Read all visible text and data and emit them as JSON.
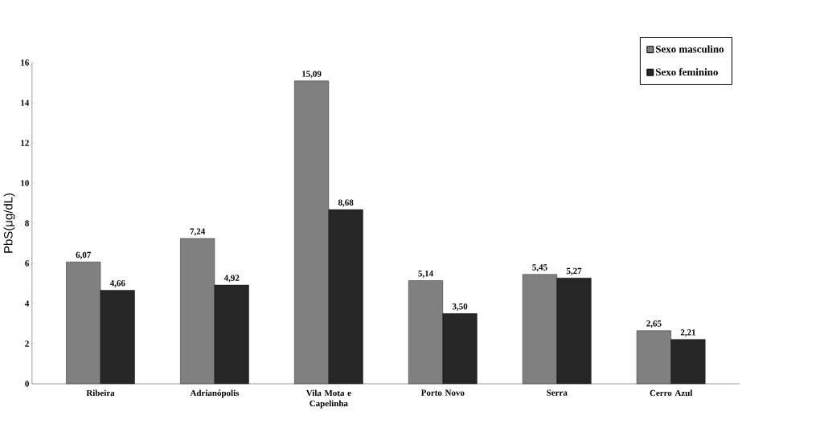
{
  "chart_data": {
    "type": "bar",
    "ylabel": "PbS(μg/dL)",
    "categories": [
      "Ribeira",
      "Adrianópolis",
      "Vila Mota e Capelinha",
      "Porto Novo",
      "Serra",
      "Cerro Azul"
    ],
    "series": [
      {
        "name": "Sexo masculino",
        "color": "#808080",
        "values": [
          6.07,
          7.24,
          15.09,
          5.14,
          5.45,
          2.65
        ],
        "value_labels": [
          "6,07",
          "7,24",
          "15,09",
          "5,14",
          "5,45",
          "2,65"
        ]
      },
      {
        "name": "Sexo feminino",
        "color": "#262626",
        "values": [
          4.66,
          4.92,
          8.68,
          3.5,
          5.27,
          2.21
        ],
        "value_labels": [
          "4,66",
          "4,92",
          "8,68",
          "3,50",
          "5,27",
          "2,21"
        ]
      }
    ],
    "ylim": [
      0,
      16
    ],
    "yticks": [
      0,
      2,
      4,
      6,
      8,
      10,
      12,
      14,
      16
    ],
    "grid": false,
    "legend": "top right"
  }
}
